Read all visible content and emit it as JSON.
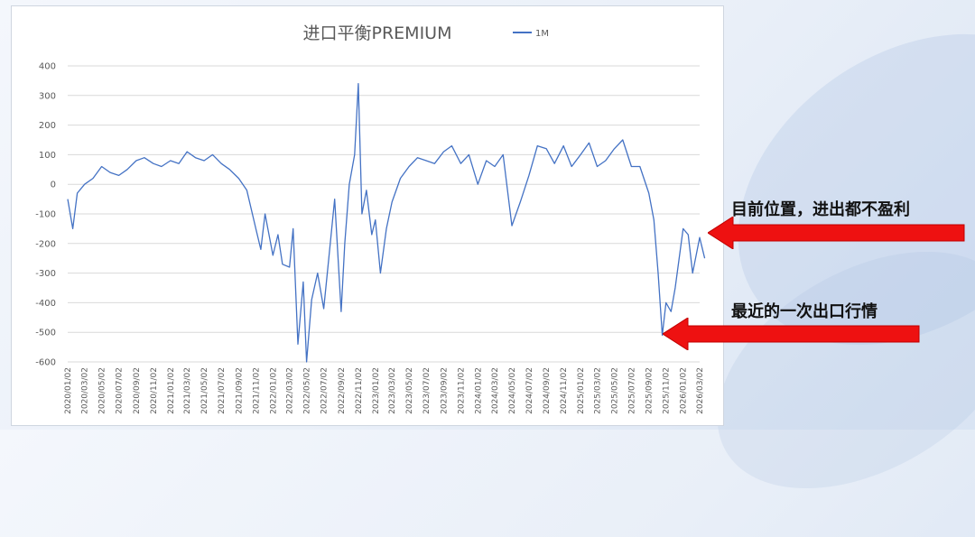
{
  "chart_data": {
    "type": "line",
    "title": "进口平衡PREMIUM",
    "xlabel": "",
    "ylabel": "",
    "ylim": [
      -600,
      400
    ],
    "yticks": [
      400,
      300,
      200,
      100,
      0,
      -100,
      -200,
      -300,
      -400,
      -500,
      -600
    ],
    "grid": true,
    "legend_position": "top-right",
    "line_color": "#4472c4",
    "x_tick_labels": [
      "2020/01/02",
      "2020/03/02",
      "2020/05/02",
      "2020/07/02",
      "2020/09/02",
      "2020/11/02",
      "2021/01/02",
      "2021/03/02",
      "2021/05/02",
      "2021/07/02",
      "2021/09/02",
      "2021/11/02",
      "2022/01/02",
      "2022/03/02",
      "2022/05/02",
      "2022/07/02",
      "2022/09/02",
      "2022/11/02",
      "2023/01/02",
      "2023/03/02",
      "2023/05/02",
      "2023/07/02",
      "2023/09/02",
      "2023/11/02",
      "2024/01/02",
      "2024/03/02",
      "2024/05/02",
      "2024/07/02",
      "2024/09/02",
      "2024/11/02",
      "2025/01/02",
      "2025/03/02",
      "2025/05/02",
      "2025/07/02",
      "2025/09/02",
      "2025/11/02",
      "2026/01/02",
      "2026/03/02"
    ],
    "series": [
      {
        "name": "1M",
        "x": [
          "2020/01/02",
          "2020/01/20",
          "2020/02/05",
          "2020/03/02",
          "2020/04/01",
          "2020/05/02",
          "2020/06/01",
          "2020/07/02",
          "2020/08/01",
          "2020/09/02",
          "2020/10/01",
          "2020/11/02",
          "2020/12/01",
          "2021/01/02",
          "2021/02/01",
          "2021/03/02",
          "2021/04/01",
          "2021/05/02",
          "2021/06/01",
          "2021/07/02",
          "2021/08/01",
          "2021/09/02",
          "2021/10/01",
          "2021/11/02",
          "2021/11/20",
          "2021/12/05",
          "2022/01/02",
          "2022/01/20",
          "2022/02/05",
          "2022/03/02",
          "2022/03/15",
          "2022/04/01",
          "2022/04/20",
          "2022/05/02",
          "2022/05/20",
          "2022/06/10",
          "2022/07/02",
          "2022/07/20",
          "2022/08/10",
          "2022/09/02",
          "2022/09/15",
          "2022/10/01",
          "2022/10/20",
          "2022/11/02",
          "2022/11/15",
          "2022/12/01",
          "2022/12/20",
          "2023/01/02",
          "2023/01/20",
          "2023/02/10",
          "2023/03/02",
          "2023/04/01",
          "2023/05/02",
          "2023/06/01",
          "2023/07/02",
          "2023/08/01",
          "2023/09/02",
          "2023/10/01",
          "2023/11/02",
          "2023/12/01",
          "2024/01/02",
          "2024/02/01",
          "2024/03/02",
          "2024/04/01",
          "2024/05/02",
          "2024/06/01",
          "2024/07/02",
          "2024/08/01",
          "2024/09/02",
          "2024/10/01",
          "2024/11/02",
          "2024/12/01",
          "2025/01/02",
          "2025/02/01",
          "2025/03/02",
          "2025/04/01",
          "2025/05/02",
          "2025/06/01",
          "2025/07/02",
          "2025/08/01",
          "2025/09/02",
          "2025/09/20",
          "2025/10/05",
          "2025/10/20",
          "2025/11/02",
          "2025/11/20",
          "2025/12/05",
          "2026/01/02",
          "2026/01/20",
          "2026/02/05",
          "2026/03/02",
          "2026/03/20"
        ],
        "values": [
          -50,
          -150,
          -30,
          0,
          20,
          60,
          40,
          30,
          50,
          80,
          90,
          70,
          60,
          80,
          70,
          110,
          90,
          80,
          100,
          70,
          50,
          20,
          -20,
          -150,
          -220,
          -100,
          -240,
          -170,
          -270,
          -280,
          -150,
          -540,
          -330,
          -600,
          -390,
          -300,
          -420,
          -250,
          -50,
          -430,
          -200,
          0,
          100,
          340,
          -100,
          -20,
          -170,
          -120,
          -300,
          -150,
          -60,
          20,
          60,
          90,
          80,
          70,
          110,
          130,
          70,
          100,
          0,
          80,
          60,
          100,
          -140,
          -60,
          30,
          130,
          120,
          70,
          130,
          60,
          100,
          140,
          60,
          80,
          120,
          150,
          60,
          60,
          -30,
          -120,
          -300,
          -510,
          -400,
          -430,
          -350,
          -150,
          -170,
          -300,
          -180,
          -250
        ]
      }
    ]
  },
  "annotations": {
    "current_position": "目前位置，进出都不盈利",
    "recent_export": "最近的一次出口行情"
  }
}
